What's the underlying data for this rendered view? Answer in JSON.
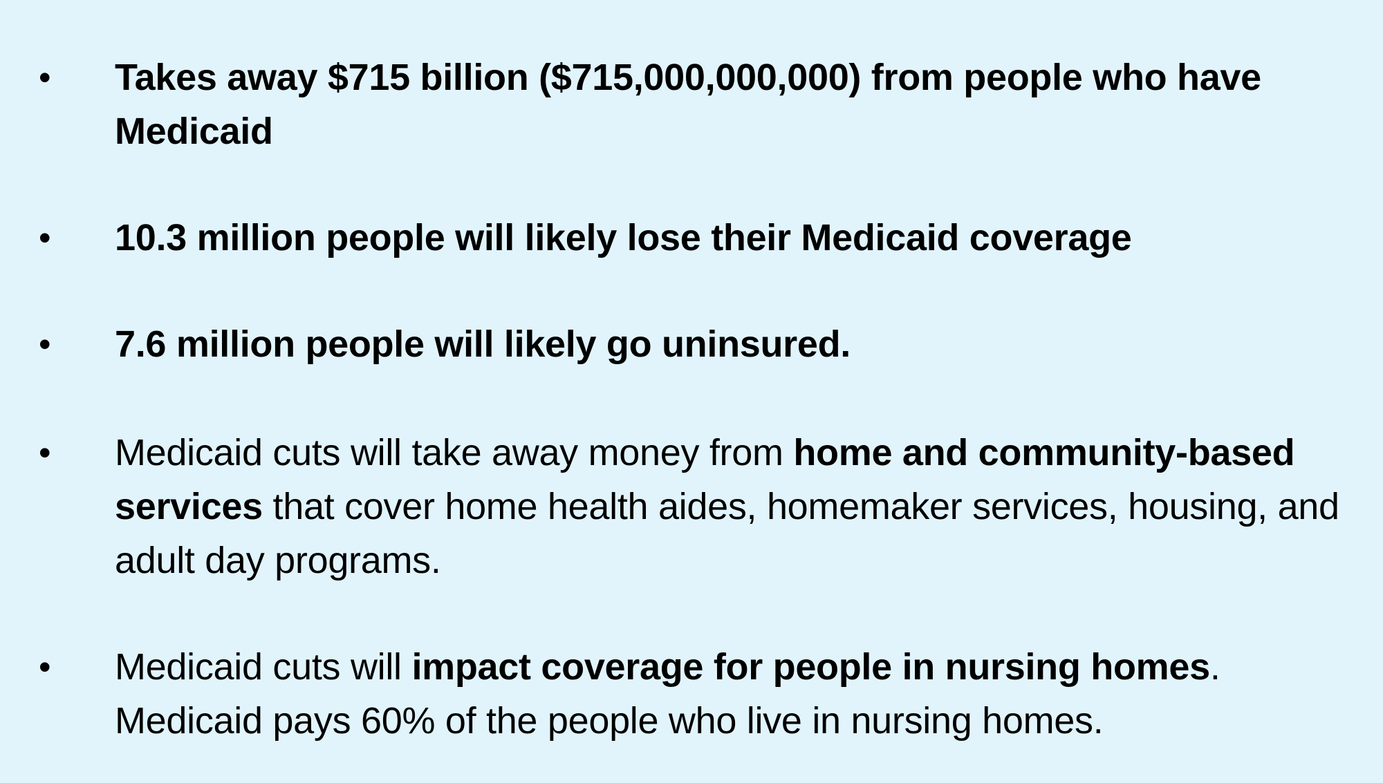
{
  "bullets": [
    {
      "marker": "•",
      "segments": [
        {
          "text": "Takes away $715 billion ($715,000,000,000) from people who have Medicaid",
          "bold": true
        }
      ]
    },
    {
      "marker": "•",
      "segments": [
        {
          "text": "10.3 million people will likely lose their Medicaid coverage",
          "bold": true
        }
      ]
    },
    {
      "marker": "•",
      "segments": [
        {
          "text": "7.6 million people will likely go uninsured.",
          "bold": true
        }
      ]
    },
    {
      "marker": "•",
      "segments": [
        {
          "text": "Medicaid cuts will take away money from ",
          "bold": false
        },
        {
          "text": "home and community-based services",
          "bold": true
        },
        {
          "text": " that cover home health aides, homemaker services, housing, and adult day programs.",
          "bold": false
        }
      ]
    },
    {
      "marker": "•",
      "segments": [
        {
          "text": "Medicaid cuts will ",
          "bold": false
        },
        {
          "text": "impact coverage for people in nursing homes",
          "bold": true
        },
        {
          "text": ". Medicaid pays 60% of the people who live in nursing homes.",
          "bold": false
        }
      ]
    }
  ]
}
